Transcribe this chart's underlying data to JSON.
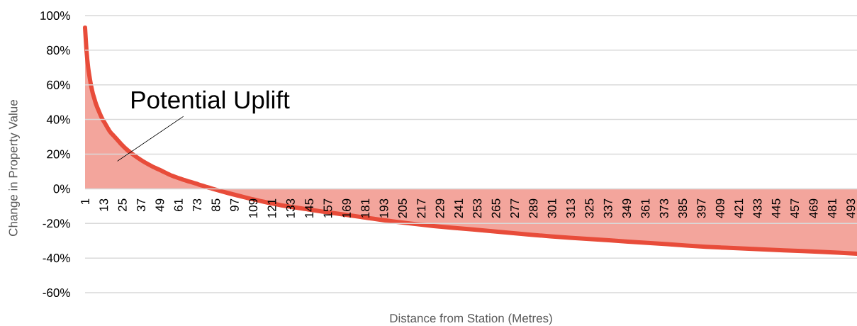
{
  "chart_data": {
    "type": "area",
    "xlabel": "Distance from Station (Metres)",
    "ylabel": "Change in Property Value",
    "series": [
      {
        "color": "#e84c3a",
        "x": [
          1,
          2,
          3,
          4,
          5,
          6,
          7,
          8,
          10,
          12,
          14,
          17,
          20,
          24,
          28,
          33,
          38,
          44,
          50,
          57,
          65,
          74,
          83,
          93,
          104,
          116,
          130,
          145,
          160,
          180,
          200,
          225,
          250,
          275,
          300,
          325,
          350,
          375,
          400,
          425,
          450,
          475,
          497
        ],
        "values": [
          93,
          79,
          70,
          64,
          59,
          55,
          52,
          49,
          44.5,
          40.5,
          37.5,
          33,
          30,
          26,
          22.5,
          19,
          16,
          13,
          10.5,
          7.5,
          5,
          2.5,
          0,
          -2.5,
          -5,
          -7.5,
          -10,
          -12,
          -14,
          -16.5,
          -19,
          -21.5,
          -23.5,
          -25.5,
          -27.5,
          -29,
          -30.5,
          -32,
          -33.5,
          -34.5,
          -35.5,
          -36.5,
          -37.5
        ]
      }
    ],
    "xlim": [
      1,
      497
    ],
    "xticks": [
      1,
      13,
      25,
      37,
      49,
      61,
      73,
      85,
      97,
      109,
      121,
      133,
      145,
      157,
      169,
      181,
      193,
      205,
      217,
      229,
      241,
      253,
      265,
      277,
      289,
      301,
      313,
      325,
      337,
      349,
      361,
      373,
      385,
      397,
      409,
      421,
      433,
      445,
      457,
      469,
      481,
      493
    ],
    "ylim": [
      -60,
      100
    ],
    "yticks": [
      {
        "value": -60,
        "label": "-60%"
      },
      {
        "value": -40,
        "label": "-40%"
      },
      {
        "value": -20,
        "label": "-20%"
      },
      {
        "value": 0,
        "label": "0%"
      },
      {
        "value": 20,
        "label": "20%"
      },
      {
        "value": 40,
        "label": "40%"
      },
      {
        "value": 60,
        "label": "60%"
      },
      {
        "value": 80,
        "label": "80%"
      },
      {
        "value": 100,
        "label": "100%"
      }
    ],
    "grid": "y",
    "annotations": [
      "Potential Uplift"
    ]
  }
}
